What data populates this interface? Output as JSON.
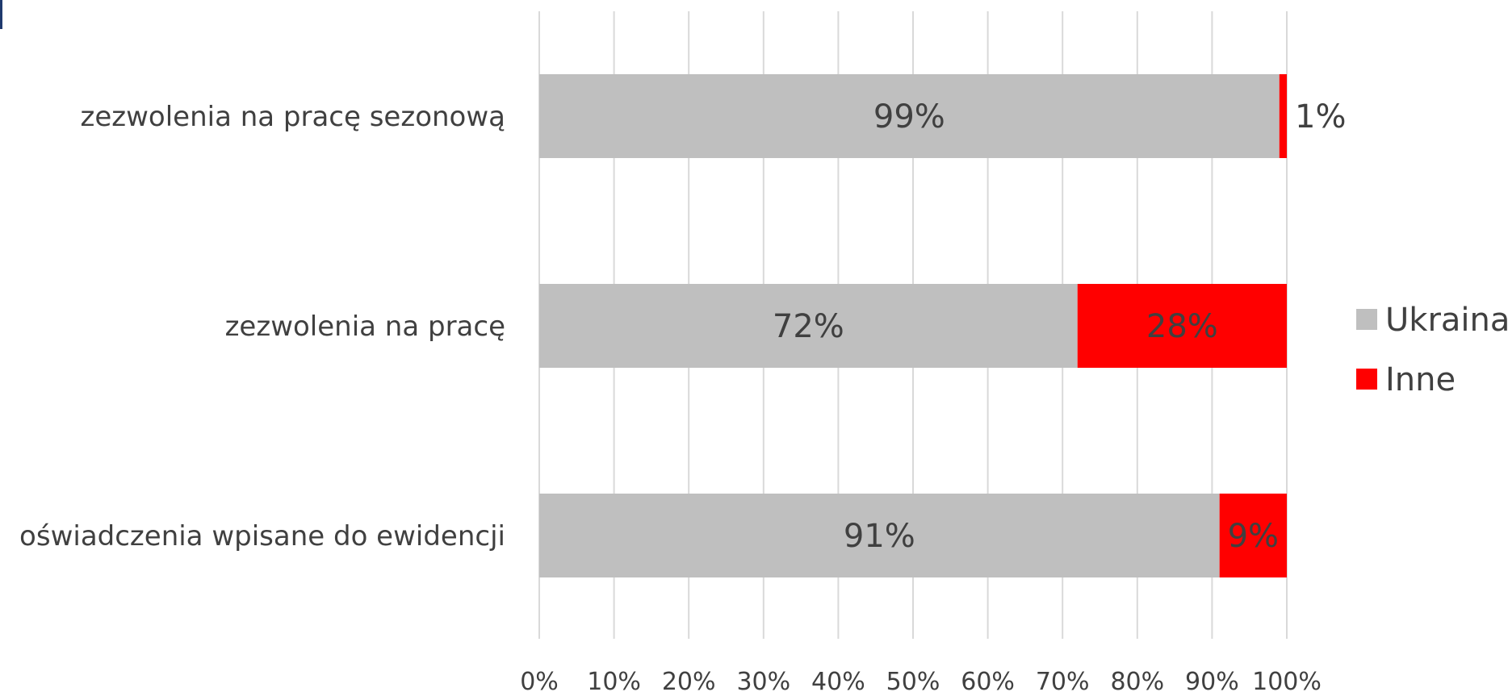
{
  "chart_data": {
    "type": "bar",
    "orientation": "horizontal",
    "stacked": true,
    "percent": true,
    "categories": [
      "zezwolenia na pracę sezonową",
      "zezwolenia na pracę",
      "oświadczenia wpisane do ewidencji"
    ],
    "series": [
      {
        "name": "Ukraina",
        "values": [
          99,
          72,
          91
        ],
        "labels": [
          "99%",
          "72%",
          "91%"
        ],
        "color": "#bfbfbf"
      },
      {
        "name": "Inne",
        "values": [
          1,
          28,
          9
        ],
        "labels": [
          "1%",
          "28%",
          "9%"
        ],
        "color": "#ff0000"
      }
    ],
    "xlim": [
      0,
      100
    ],
    "x_ticks": [
      "0%",
      "10%",
      "20%",
      "30%",
      "40%",
      "50%",
      "60%",
      "70%",
      "80%",
      "90%",
      "100%"
    ],
    "grid": true,
    "legend": "right",
    "title": "",
    "xlabel": "",
    "ylabel": ""
  }
}
